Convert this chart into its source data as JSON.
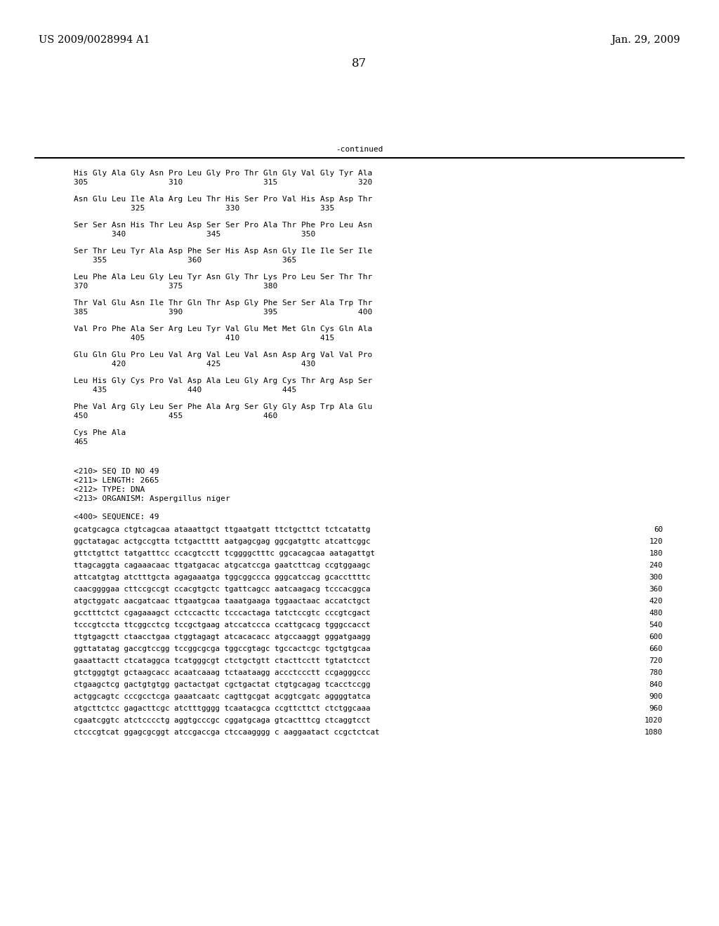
{
  "header_left": "US 2009/0028994 A1",
  "header_right": "Jan. 29, 2009",
  "page_number": "87",
  "continued_label": "-continued",
  "background_color": "#ffffff",
  "text_color": "#000000",
  "protein_lines": [
    [
      "His Gly Ala Gly Asn Pro Leu Gly Pro Thr Gln Gly Val Gly Tyr Ala",
      "305                 310                 315                 320"
    ],
    [
      "Asn Glu Leu Ile Ala Arg Leu Thr His Ser Pro Val His Asp Asp Thr",
      "            325                 330                 335"
    ],
    [
      "Ser Ser Asn His Thr Leu Asp Ser Ser Pro Ala Thr Phe Pro Leu Asn",
      "        340                 345                 350"
    ],
    [
      "Ser Thr Leu Tyr Ala Asp Phe Ser His Asp Asn Gly Ile Ile Ser Ile",
      "    355                 360                 365"
    ],
    [
      "Leu Phe Ala Leu Gly Leu Tyr Asn Gly Thr Lys Pro Leu Ser Thr Thr",
      "370                 375                 380"
    ],
    [
      "Thr Val Glu Asn Ile Thr Gln Thr Asp Gly Phe Ser Ser Ala Trp Thr",
      "385                 390                 395                 400"
    ],
    [
      "Val Pro Phe Ala Ser Arg Leu Tyr Val Glu Met Met Gln Cys Gln Ala",
      "            405                 410                 415"
    ],
    [
      "Glu Gln Glu Pro Leu Val Arg Val Leu Val Asn Asp Arg Val Val Pro",
      "        420                 425                 430"
    ],
    [
      "Leu His Gly Cys Pro Val Asp Ala Leu Gly Arg Cys Thr Arg Asp Ser",
      "    435                 440                 445"
    ],
    [
      "Phe Val Arg Gly Leu Ser Phe Ala Arg Ser Gly Gly Asp Trp Ala Glu",
      "450                 455                 460"
    ],
    [
      "Cys Phe Ala",
      "465"
    ]
  ],
  "seq_info": [
    "<210> SEQ ID NO 49",
    "<211> LENGTH: 2665",
    "<212> TYPE: DNA",
    "<213> ORGANISM: Aspergillus niger"
  ],
  "seq_label": "<400> SEQUENCE: 49",
  "dna_lines": [
    [
      "gcatgcagca ctgtcagcaa ataaattgct ttgaatgatt ttctgcttct tctcatattg",
      "60"
    ],
    [
      "ggctatagac actgccgtta tctgactttt aatgagcgag ggcgatgttc atcattcggc",
      "120"
    ],
    [
      "gttctgttct tatgatttcc ccacgtcctt tcggggctttc ggcacagcaa aatagattgt",
      "180"
    ],
    [
      "ttagcaggta cagaaacaac ttgatgacac atgcatccga gaatcttcag ccgtggaagc",
      "240"
    ],
    [
      "attcatgtag atctttgcta agagaaatga tggcggccca gggcatccag gcaccttttc",
      "300"
    ],
    [
      "caacggggaa cttccgccgt ccacgtgctc tgattcagcc aatcaagacg tcccacggca",
      "360"
    ],
    [
      "atgctggatc aacgatcaac ttgaatgcaa taaatgaaga tggaactaac accatctgct",
      "420"
    ],
    [
      "gcctttctct cgagaaagct cctccacttc tcccactaga tatctccgtc cccgtcgact",
      "480"
    ],
    [
      "tcccgtccta ttcggcctcg tccgctgaag atccatccca ccattgcacg tgggccacct",
      "540"
    ],
    [
      "ttgtgagctt ctaacctgaa ctggtagagt atcacacacc atgccaaggt gggatgaagg",
      "600"
    ],
    [
      "ggttatatag gaccgtccgg tccggcgcga tggccgtagc tgccactcgc tgctgtgcaa",
      "660"
    ],
    [
      "gaaattactt ctcataggca tcatgggcgt ctctgctgtt ctacttcctt tgtatctcct",
      "720"
    ],
    [
      "gtctgggtgt gctaagcacc acaatcaaag tctaataagg accctccctt ccgagggccc",
      "780"
    ],
    [
      "ctgaagctcg gactgtgtgg gactactgat cgctgactat ctgtgcagag tcacctccgg",
      "840"
    ],
    [
      "actggcagtc cccgcctcga gaaatcaatc cagttgcgat acggtcgatc aggggtatca",
      "900"
    ],
    [
      "atgcttctcc gagacttcgc atctttgggg tcaatacgca ccgttcttct ctctggcaaa",
      "960"
    ],
    [
      "cgaatcggtc atctcccctg aggtgcccgc cggatgcaga gtcactttcg ctcaggtcct",
      "1020"
    ],
    [
      "ctcccgtcat ggagcgcggt atccgaccga ctccaagggg c aaggaatact ccgctctcat",
      "1080"
    ]
  ]
}
